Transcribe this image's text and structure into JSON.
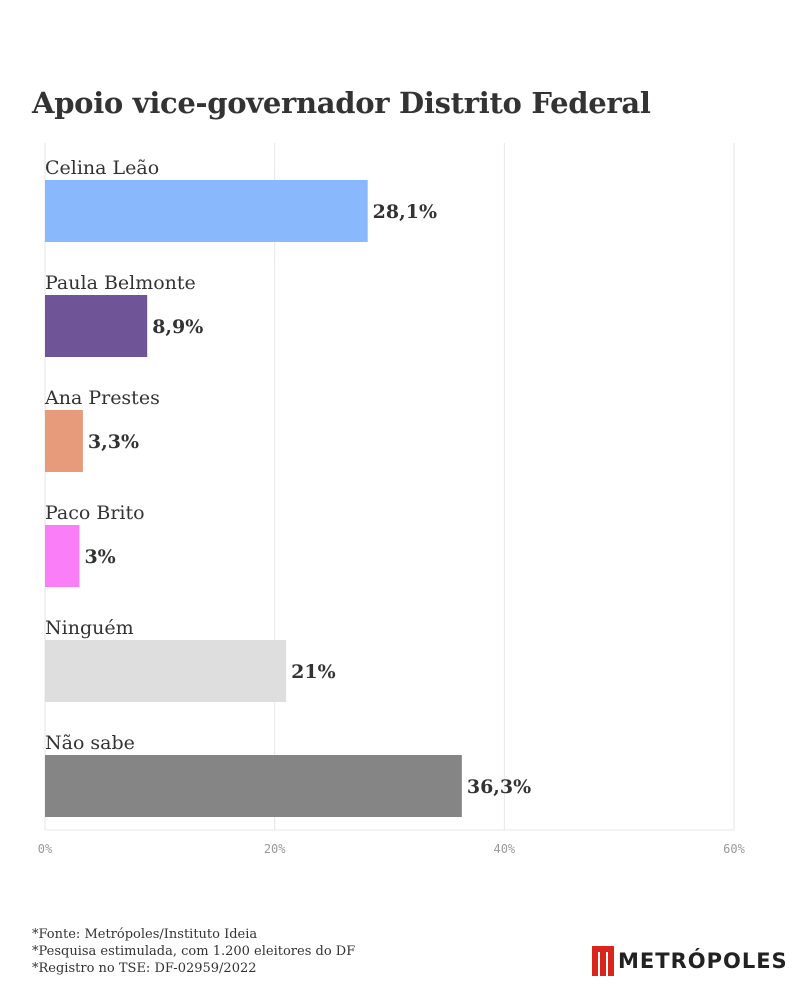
{
  "title": "Apoio vice-governador Distrito Federal",
  "chart_data": {
    "type": "bar",
    "orientation": "horizontal",
    "categories": [
      "Celina Leão",
      "Paula Belmonte",
      "Ana Prestes",
      "Paco Brito",
      "Ninguém",
      "Não sabe"
    ],
    "values": [
      28.1,
      8.9,
      3.3,
      3,
      21,
      36.3
    ],
    "value_labels": [
      "28,1%",
      "8,9%",
      "3,3%",
      "3%",
      "21%",
      "36,3%"
    ],
    "colors": [
      "#8ab8fd",
      "#6f5597",
      "#e79b7a",
      "#f97ef7",
      "#dedede",
      "#858585"
    ],
    "xlim": [
      0,
      60
    ],
    "ticks": [
      0,
      20,
      40,
      60
    ],
    "tick_labels": [
      "0%",
      "20%",
      "40%",
      "60%"
    ],
    "grid": true
  },
  "footnotes": [
    "*Fonte: Metrópoles/Instituto Ideia",
    "*Pesquisa estimulada, com 1.200 eleitores do DF",
    "*Registro no TSE: DF-02959/2022"
  ],
  "brand": {
    "name": "METRÓPOLES",
    "color": "#d9251c"
  }
}
